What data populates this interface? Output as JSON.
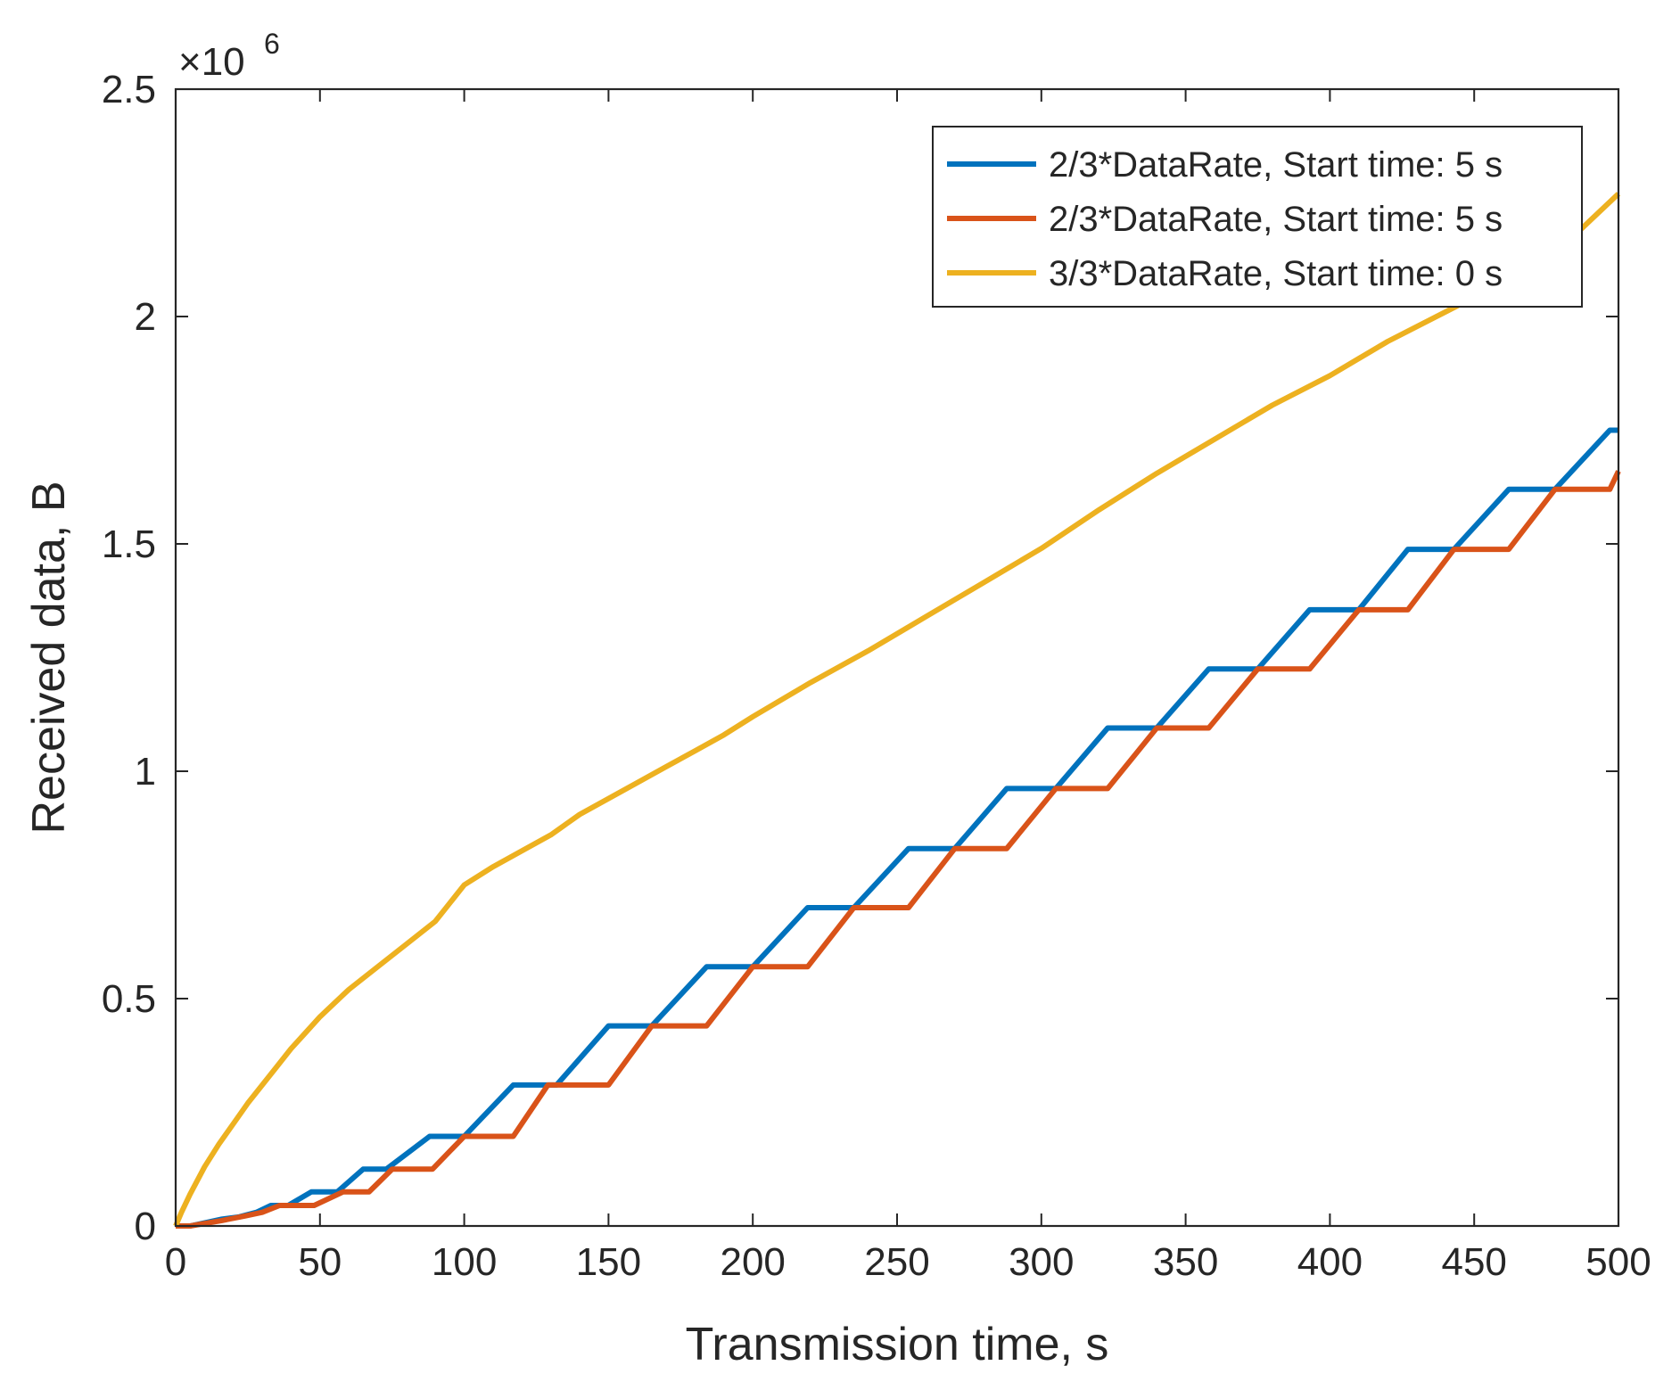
{
  "chart_data": {
    "type": "line",
    "title": "",
    "xlabel": "Transmission time, s",
    "ylabel": "Received data, B",
    "xlim": [
      0,
      500
    ],
    "ylim": [
      0,
      2500000
    ],
    "y_exponent_label": "×10",
    "y_exponent_power": "6",
    "x_ticks": [
      0,
      50,
      100,
      150,
      200,
      250,
      300,
      350,
      400,
      450,
      500
    ],
    "x_tick_labels": [
      "0",
      "50",
      "100",
      "150",
      "200",
      "250",
      "300",
      "350",
      "400",
      "450",
      "500"
    ],
    "y_ticks": [
      0,
      500000,
      1000000,
      1500000,
      2000000,
      2500000
    ],
    "y_tick_labels": [
      "0",
      "0.5",
      "1",
      "1.5",
      "2",
      "2.5"
    ],
    "legend_position": "top-right",
    "series": [
      {
        "name": "2/3*DataRate, Start time: 5 s",
        "color": "#0072BD",
        "points": [
          [
            0,
            0
          ],
          [
            5,
            0
          ],
          [
            16,
            15000
          ],
          [
            22,
            20000
          ],
          [
            28,
            30000
          ],
          [
            33,
            45000
          ],
          [
            39,
            45000
          ],
          [
            47,
            75000
          ],
          [
            56,
            75000
          ],
          [
            65,
            125000
          ],
          [
            73,
            125000
          ],
          [
            88,
            197000
          ],
          [
            100,
            197000
          ],
          [
            117,
            310000
          ],
          [
            132,
            310000
          ],
          [
            150,
            440000
          ],
          [
            165,
            440000
          ],
          [
            184,
            570000
          ],
          [
            200,
            570000
          ],
          [
            219,
            700000
          ],
          [
            235,
            700000
          ],
          [
            254,
            830000
          ],
          [
            270,
            830000
          ],
          [
            288,
            962000
          ],
          [
            305,
            962000
          ],
          [
            323,
            1095000
          ],
          [
            340,
            1095000
          ],
          [
            358,
            1225000
          ],
          [
            375,
            1225000
          ],
          [
            393,
            1355000
          ],
          [
            410,
            1355000
          ],
          [
            427,
            1488000
          ],
          [
            443,
            1488000
          ],
          [
            462,
            1620000
          ],
          [
            478,
            1620000
          ],
          [
            497,
            1750000
          ],
          [
            500,
            1750000
          ]
        ]
      },
      {
        "name": "2/3*DataRate, Start time: 5 s",
        "color": "#D95319",
        "points": [
          [
            0,
            0
          ],
          [
            5,
            0
          ],
          [
            16,
            12000
          ],
          [
            24,
            22000
          ],
          [
            30,
            30000
          ],
          [
            36,
            45000
          ],
          [
            48,
            45000
          ],
          [
            58,
            75000
          ],
          [
            67,
            75000
          ],
          [
            75,
            125000
          ],
          [
            89,
            125000
          ],
          [
            100,
            197000
          ],
          [
            117,
            197000
          ],
          [
            129,
            310000
          ],
          [
            150,
            310000
          ],
          [
            165,
            440000
          ],
          [
            184,
            440000
          ],
          [
            200,
            570000
          ],
          [
            219,
            570000
          ],
          [
            235,
            700000
          ],
          [
            254,
            700000
          ],
          [
            270,
            830000
          ],
          [
            288,
            830000
          ],
          [
            305,
            962000
          ],
          [
            323,
            962000
          ],
          [
            340,
            1095000
          ],
          [
            358,
            1095000
          ],
          [
            375,
            1225000
          ],
          [
            393,
            1225000
          ],
          [
            410,
            1355000
          ],
          [
            427,
            1355000
          ],
          [
            443,
            1488000
          ],
          [
            462,
            1488000
          ],
          [
            478,
            1620000
          ],
          [
            497,
            1620000
          ],
          [
            500,
            1660000
          ]
        ]
      },
      {
        "name": "3/3*DataRate, Start time: 0 s",
        "color": "#EDB120",
        "points": [
          [
            0,
            0
          ],
          [
            2,
            30000
          ],
          [
            5,
            70000
          ],
          [
            10,
            130000
          ],
          [
            15,
            180000
          ],
          [
            20,
            225000
          ],
          [
            25,
            270000
          ],
          [
            30,
            310000
          ],
          [
            35,
            350000
          ],
          [
            40,
            390000
          ],
          [
            45,
            425000
          ],
          [
            50,
            460000
          ],
          [
            55,
            490000
          ],
          [
            60,
            520000
          ],
          [
            70,
            570000
          ],
          [
            80,
            620000
          ],
          [
            90,
            670000
          ],
          [
            100,
            750000
          ],
          [
            110,
            790000
          ],
          [
            120,
            825000
          ],
          [
            130,
            860000
          ],
          [
            140,
            905000
          ],
          [
            150,
            940000
          ],
          [
            160,
            975000
          ],
          [
            170,
            1010000
          ],
          [
            180,
            1045000
          ],
          [
            190,
            1080000
          ],
          [
            200,
            1120000
          ],
          [
            220,
            1195000
          ],
          [
            240,
            1265000
          ],
          [
            260,
            1340000
          ],
          [
            280,
            1415000
          ],
          [
            300,
            1490000
          ],
          [
            320,
            1575000
          ],
          [
            340,
            1655000
          ],
          [
            360,
            1730000
          ],
          [
            380,
            1805000
          ],
          [
            400,
            1870000
          ],
          [
            420,
            1945000
          ],
          [
            440,
            2010000
          ],
          [
            460,
            2075000
          ],
          [
            480,
            2150000
          ],
          [
            500,
            2270000
          ]
        ]
      }
    ]
  }
}
